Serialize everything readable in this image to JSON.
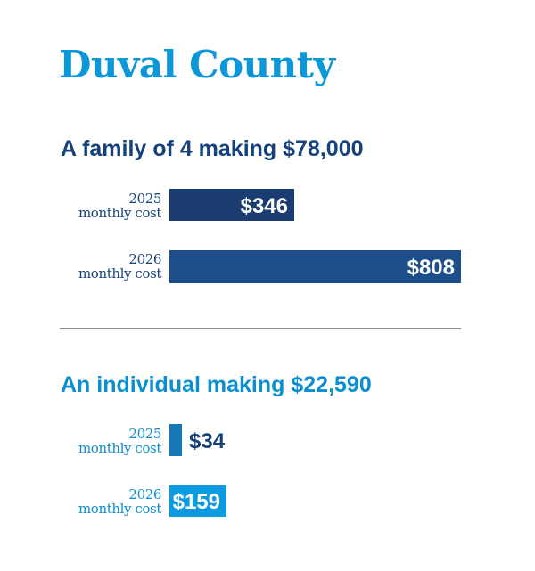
{
  "title": "Duval County",
  "colors": {
    "title": "#0b97d8",
    "family_heading": "#16427b",
    "family_bar_2025": "#1a3c70",
    "family_bar_2026": "#1e4e89",
    "individual_heading": "#0b8fd0",
    "individual_bar_2025": "#1678b6",
    "individual_bar_2026": "#0d9be0",
    "divider": "#8a8a8a"
  },
  "chart_data": [
    {
      "type": "bar",
      "orientation": "horizontal",
      "title": "A family of 4 making $78,000",
      "categories": [
        {
          "year": "2025",
          "label": "monthly cost"
        },
        {
          "year": "2026",
          "label": "monthly cost"
        }
      ],
      "values": [
        346,
        808
      ],
      "value_labels": [
        "$346",
        "$808"
      ],
      "value_label_position": [
        "inside",
        "inside"
      ],
      "xlim": [
        0,
        808
      ],
      "grid": false
    },
    {
      "type": "bar",
      "orientation": "horizontal",
      "title": "An individual making $22,590",
      "categories": [
        {
          "year": "2025",
          "label": "monthly cost"
        },
        {
          "year": "2026",
          "label": "monthly cost"
        }
      ],
      "values": [
        34,
        159
      ],
      "value_labels": [
        "$34",
        "$159"
      ],
      "value_label_position": [
        "outside",
        "inside"
      ],
      "xlim": [
        0,
        808
      ],
      "grid": false
    }
  ]
}
